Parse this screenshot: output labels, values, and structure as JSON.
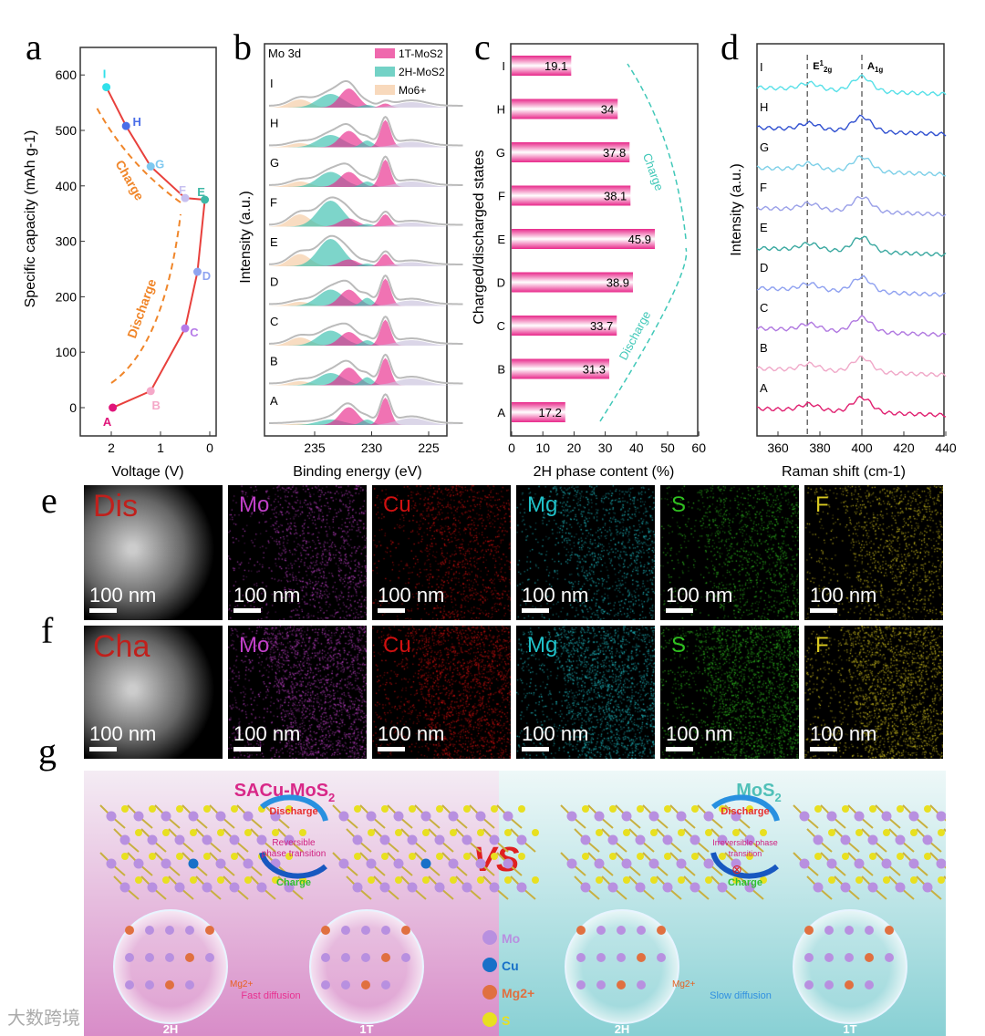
{
  "panel_labels": [
    "a",
    "b",
    "c",
    "d",
    "e",
    "f",
    "g"
  ],
  "chart_data": [
    {
      "type": "line",
      "id": "a",
      "xlabel": "Voltage (V)",
      "ylabel": "Specific capacity (mAh g-1)",
      "xlim": [
        2.5,
        -0.2
      ],
      "ylim": [
        -50,
        650
      ],
      "xticks": [
        2,
        1,
        0
      ],
      "yticks": [
        0,
        100,
        200,
        300,
        400,
        500,
        600
      ],
      "points": [
        {
          "label": "A",
          "v": 1.97,
          "c": 0,
          "color": "#e0157a"
        },
        {
          "label": "B",
          "v": 1.2,
          "c": 30,
          "color": "#f5a8c8"
        },
        {
          "label": "C",
          "v": 0.5,
          "c": 143,
          "color": "#b57ae8"
        },
        {
          "label": "D",
          "v": 0.25,
          "c": 245,
          "color": "#8fa4f0"
        },
        {
          "label": "E",
          "v": 0.1,
          "c": 375,
          "color": "#3fb8a6"
        },
        {
          "label": "F",
          "v": 0.5,
          "c": 378,
          "color": "#c7c0f0"
        },
        {
          "label": "G",
          "v": 1.2,
          "c": 435,
          "color": "#7ec8f0"
        },
        {
          "label": "H",
          "v": 1.7,
          "c": 508,
          "color": "#4a6ee8"
        },
        {
          "label": "I",
          "v": 2.1,
          "c": 578,
          "color": "#30e0ea"
        }
      ],
      "annotations": [
        "Discharge",
        "Charge"
      ],
      "line_color": "#e8403c",
      "arrow_color": "#f0862a"
    },
    {
      "type": "area",
      "id": "b",
      "title": "Mo 3d",
      "xlabel": "Binding energy (eV)",
      "ylabel": "Intensity (a.u.)",
      "xlim": [
        239,
        222
      ],
      "xticks": [
        235,
        230,
        225
      ],
      "legend": [
        {
          "name": "1T-MoS2",
          "color": "#e8288a"
        },
        {
          "name": "2H-MoS2",
          "color": "#38bfae"
        },
        {
          "name": "Mo6+",
          "color": "#f5c9a0"
        }
      ],
      "states": [
        "I",
        "H",
        "G",
        "F",
        "E",
        "D",
        "C",
        "B",
        "A"
      ],
      "components": {
        "mo6": 236.3,
        "h2": 233.6,
        "t1": 232.0,
        "h2b": 230.4,
        "t1b": 228.8,
        "s2s": 226.5
      },
      "amplitudes": [
        [
          0.3,
          0.5,
          0.7,
          0.1,
          0.15,
          0.2
        ],
        [
          0.15,
          0.45,
          0.6,
          0.25,
          1.0,
          0.2
        ],
        [
          0.2,
          0.55,
          0.55,
          0.2,
          1.0,
          0.2
        ],
        [
          0.45,
          0.95,
          0.3,
          0.1,
          0.45,
          0.15
        ],
        [
          0.45,
          1.0,
          0.25,
          0.1,
          0.45,
          0.15
        ],
        [
          0.15,
          0.6,
          0.6,
          0.3,
          1.0,
          0.2
        ],
        [
          0.3,
          0.55,
          0.5,
          0.2,
          0.95,
          0.2
        ],
        [
          0.15,
          0.45,
          0.65,
          0.3,
          1.0,
          0.25
        ],
        [
          0.05,
          0.2,
          0.65,
          0.2,
          1.0,
          0.25
        ]
      ]
    },
    {
      "type": "bar",
      "id": "c",
      "orientation": "horizontal",
      "xlabel": "2H phase content (%)",
      "ylabel": "Charged/discharged states",
      "categories": [
        "A",
        "B",
        "C",
        "D",
        "E",
        "F",
        "G",
        "H",
        "I"
      ],
      "values": [
        17.2,
        31.3,
        33.7,
        38.9,
        45.9,
        38.1,
        37.8,
        34,
        19.1
      ],
      "value_labels": [
        "17.2",
        "31.3",
        "33.7",
        "38.9",
        "45.9",
        "38.1",
        "37.8",
        "34",
        "19.1"
      ],
      "xlim": [
        0,
        60
      ],
      "xticks": [
        0,
        10,
        20,
        30,
        40,
        50,
        60
      ],
      "annotations": [
        "Discharge",
        "Charge"
      ],
      "bar_color": "#e8288a"
    },
    {
      "type": "line",
      "id": "d",
      "xlabel": "Raman shift (cm-1)",
      "ylabel": "Intensity (a.u.)",
      "xlim": [
        350,
        440
      ],
      "xticks": [
        360,
        380,
        400,
        420,
        440
      ],
      "peaks": [
        {
          "name": "E",
          "sup": "1",
          "sub": "2g",
          "x": 374
        },
        {
          "name": "A",
          "sub": "1g",
          "x": 400
        }
      ],
      "series": [
        {
          "name": "I",
          "color": "#58e0e8"
        },
        {
          "name": "H",
          "color": "#3050d0"
        },
        {
          "name": "G",
          "color": "#7ed0e8"
        },
        {
          "name": "F",
          "color": "#9aa0e8"
        },
        {
          "name": "E",
          "color": "#3aa8a0"
        },
        {
          "name": "D",
          "color": "#8ea0f0"
        },
        {
          "name": "C",
          "color": "#b078e0"
        },
        {
          "name": "B",
          "color": "#f0a8c8"
        },
        {
          "name": "A",
          "color": "#e02070"
        }
      ]
    }
  ],
  "eds": {
    "rows": [
      {
        "id": "e",
        "tiles": [
          {
            "label": "Dis",
            "color": "#c0201c"
          },
          {
            "label": "Mo",
            "color": "#c040c8"
          },
          {
            "label": "Cu",
            "color": "#d01010"
          },
          {
            "label": "Mg",
            "color": "#20c0c8"
          },
          {
            "label": "S",
            "color": "#30c020"
          },
          {
            "label": "F",
            "color": "#d8c820"
          }
        ]
      },
      {
        "id": "f",
        "tiles": [
          {
            "label": "Cha",
            "color": "#c0201c"
          },
          {
            "label": "Mo",
            "color": "#c040c8"
          },
          {
            "label": "Cu",
            "color": "#d01010"
          },
          {
            "label": "Mg",
            "color": "#20c0c8"
          },
          {
            "label": "S",
            "color": "#30c020"
          },
          {
            "label": "F",
            "color": "#d8c820"
          }
        ]
      }
    ],
    "scale_bar": "100 nm"
  },
  "schematic": {
    "left_title": "SACu-MoS",
    "left_title_sub": "2",
    "right_title": "MoS",
    "right_title_sub": "2",
    "vs": "VS",
    "discharge": "Discharge",
    "charge": "Charge",
    "reversible": [
      "Reversible",
      "phase transition"
    ],
    "irreversible": [
      "Irreversible phase",
      "transition"
    ],
    "fast": "Fast diffusion",
    "slow": "Slow diffusion",
    "mg_ion": "Mg2+",
    "phases": [
      "2H",
      "1T",
      "2H",
      "1T"
    ],
    "legend": [
      {
        "name": "Mo",
        "color": "#b890e0"
      },
      {
        "name": "Cu",
        "color": "#1870c8"
      },
      {
        "name": "Mg2+",
        "color": "#e07040"
      },
      {
        "name": "S",
        "color": "#e8e020"
      }
    ]
  },
  "watermark": "大数跨境"
}
